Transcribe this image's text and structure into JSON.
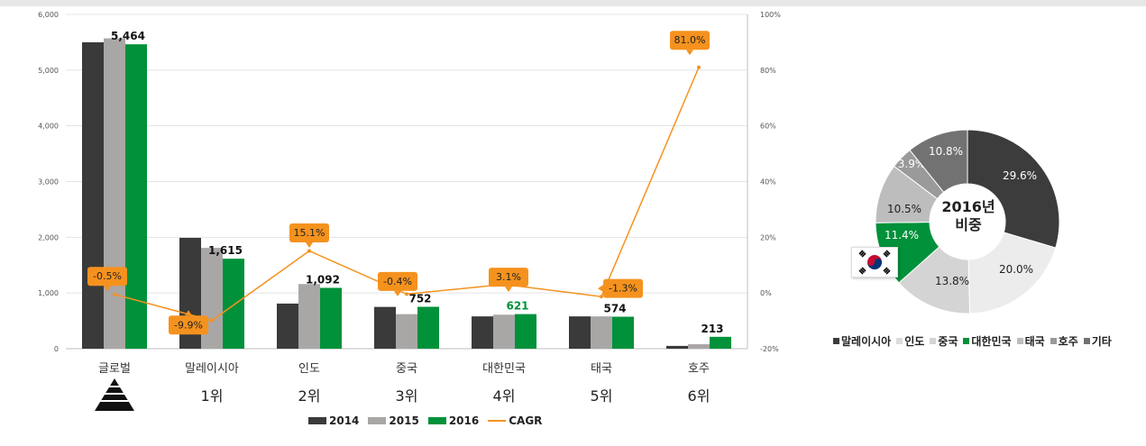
{
  "chart_data": [
    {
      "type": "bar",
      "categories": [
        "글로벌",
        "말레이시아",
        "인도",
        "중국",
        "대한민국",
        "태국",
        "호주"
      ],
      "ranks": [
        "",
        "1위",
        "2위",
        "3위",
        "4위",
        "5위",
        "6위"
      ],
      "series": [
        {
          "name": "2014",
          "color": "#3a3a3a",
          "values": [
            5500,
            1990,
            810,
            750,
            580,
            580,
            50
          ]
        },
        {
          "name": "2015",
          "color": "#a9a6a6",
          "values": [
            5570,
            1810,
            1160,
            620,
            610,
            580,
            80
          ]
        },
        {
          "name": "2016",
          "color": "#00913a",
          "values": [
            5464,
            1615,
            1092,
            752,
            621,
            574,
            213
          ]
        }
      ],
      "value_labels": [
        "5,464",
        "1,615",
        "1,092",
        "752",
        "621",
        "574",
        "213"
      ],
      "cagr": {
        "name": "CAGR",
        "color": "#f5921e",
        "values": [
          -0.5,
          -9.9,
          15.1,
          -0.4,
          3.1,
          -1.3,
          81.0
        ],
        "labels": [
          "-0.5%",
          "-9.9%",
          "15.1%",
          "-0.4%",
          "3.1%",
          "-1.3%",
          "81.0%"
        ]
      },
      "y_left": {
        "min": 0,
        "max": 6000,
        "ticks": [
          "0",
          "1,000",
          "2,000",
          "3,000",
          "4,000",
          "5,000",
          "6,000"
        ]
      },
      "y_right": {
        "min": -20,
        "max": 100,
        "ticks": [
          "-20%",
          "0%",
          "20%",
          "40%",
          "60%",
          "80%",
          "100%"
        ]
      },
      "legend": [
        "2014",
        "2015",
        "2016",
        "CAGR"
      ],
      "grid": true,
      "legend_position": "bottom"
    },
    {
      "type": "pie",
      "center_label": [
        "2016년",
        "비중"
      ],
      "slices": [
        {
          "name": "말레이시아",
          "value": 29.6,
          "label": "29.6%",
          "color": "#3c3c3c"
        },
        {
          "name": "인도",
          "value": 20.0,
          "label": "20.0%",
          "color": "#ececec"
        },
        {
          "name": "중국",
          "value": 13.8,
          "label": "13.8%",
          "color": "#d4d4d4"
        },
        {
          "name": "대한민국",
          "value": 11.4,
          "label": "11.4%",
          "color": "#00913a"
        },
        {
          "name": "태국",
          "value": 10.5,
          "label": "10.5%",
          "color": "#bdbdbd"
        },
        {
          "name": "호주",
          "value": 3.9,
          "label": "3.9%",
          "color": "#9a9a9a"
        },
        {
          "name": "기타",
          "value": 10.8,
          "label": "10.8%",
          "color": "#727272"
        }
      ],
      "legend_position": "bottom"
    }
  ]
}
